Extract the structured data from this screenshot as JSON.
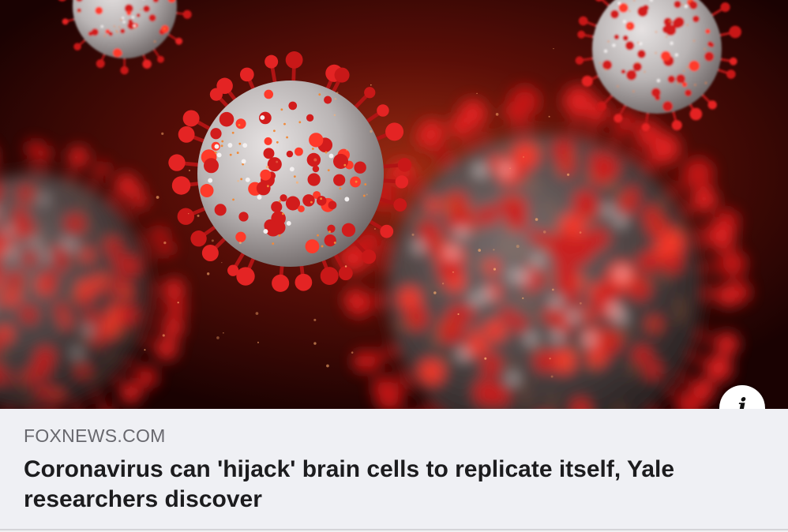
{
  "link_preview": {
    "source": "FOXNEWS.COM",
    "headline": "Coronavirus can 'hijack' brain cells to replicate itself, Yale researchers discover",
    "info_icon": "info-icon"
  },
  "image": {
    "subject": "coronavirus-particles-illustration",
    "colors": {
      "background_glow": "#9c2c12",
      "background_dark": "#1a0202",
      "spike_red": "#d21c1c",
      "shell_gray": "#b9b4b4"
    }
  }
}
